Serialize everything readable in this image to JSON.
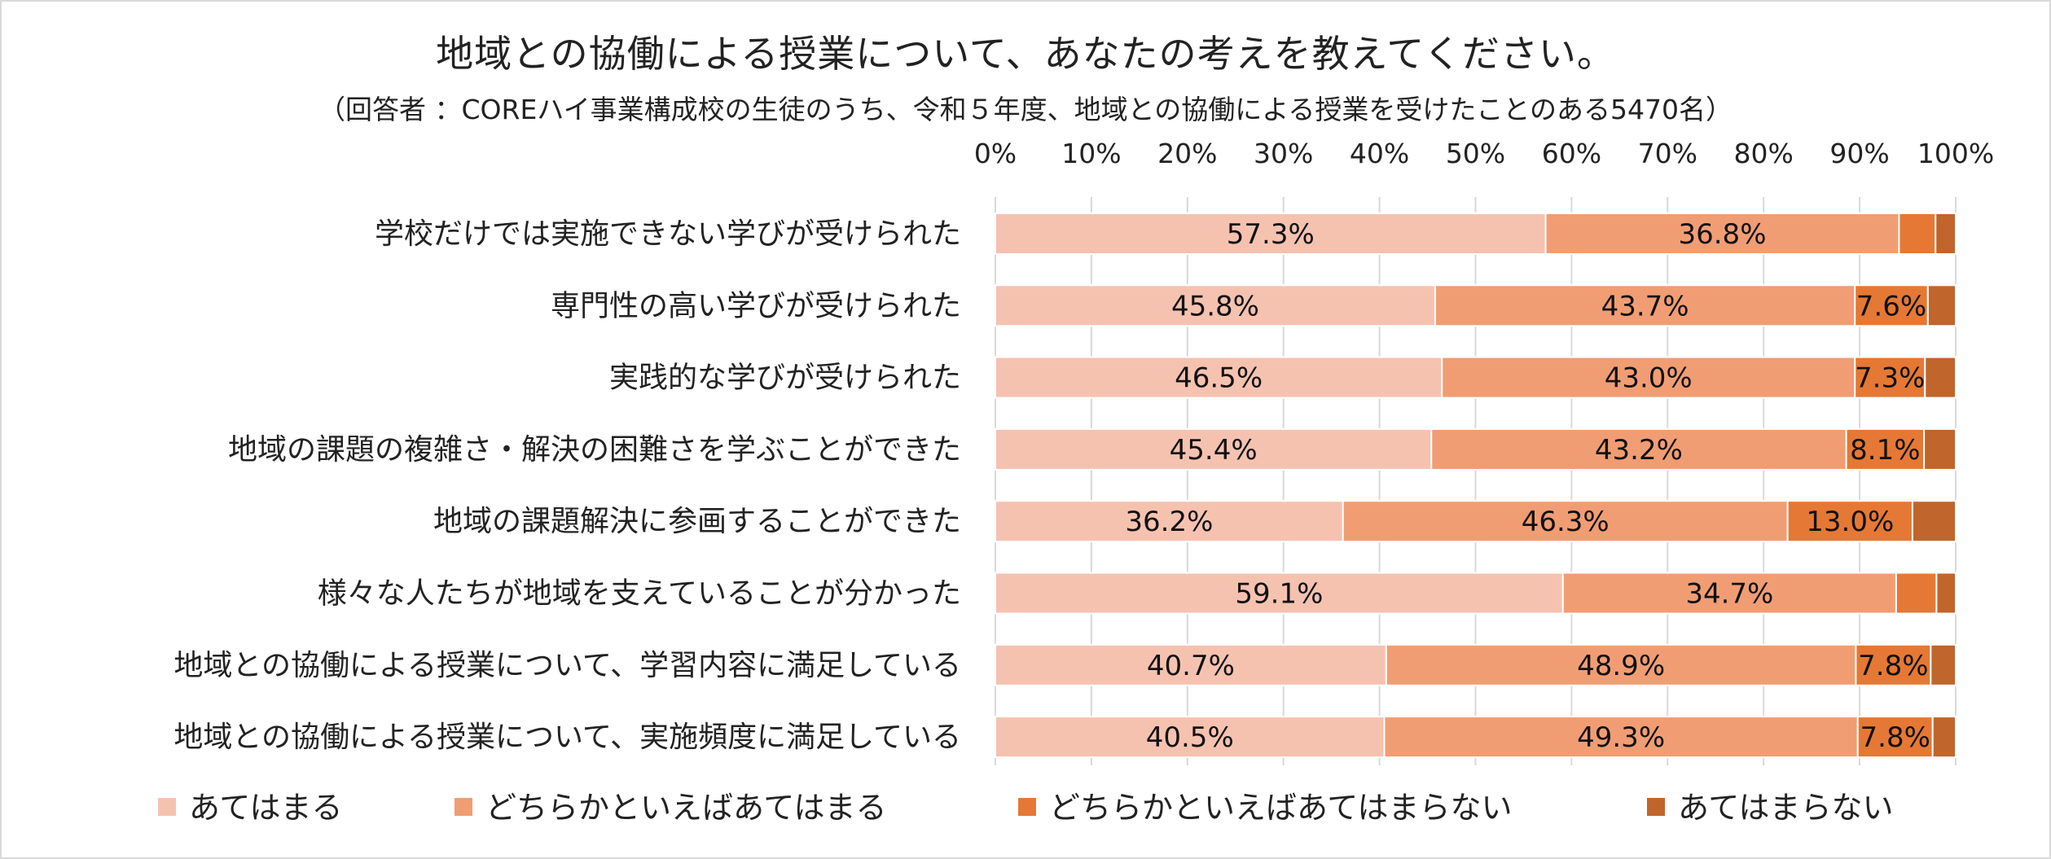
{
  "chart_data": {
    "type": "bar",
    "orientation": "horizontal",
    "stacked": true,
    "percent": true,
    "title": "地域との協働による授業について、あなたの考えを教えてください。",
    "subtitle": "（回答者 ：COREハイ事業構成校の生徒のうち、令和５年度、地域との協働による授業を受けたことのある5470名）",
    "xlim": [
      0,
      100
    ],
    "x_ticks": [
      "0%",
      "10%",
      "20%",
      "30%",
      "40%",
      "50%",
      "60%",
      "70%",
      "80%",
      "90%",
      "100%"
    ],
    "x_axis_position": "top",
    "grid": true,
    "legend_position": "bottom",
    "categories": [
      "学校だけでは実施できない学びが受けられた",
      "専門性の高い学びが受けられた",
      "実践的な学びが受けられた",
      "地域の課題の複雑さ・解決の困難さを学ぶことができた",
      "地域の課題解決に参画することができた",
      "様々な人たちが地域を支えていることが分かった",
      "地域との協働による授業について、学習内容に満足している",
      "地域との協働による授業について、実施頻度に満足している"
    ],
    "series": [
      {
        "name": "あてはまる",
        "color": "#f6c2b0",
        "values": [
          57.3,
          45.8,
          46.5,
          45.4,
          36.2,
          59.1,
          40.7,
          40.5
        ],
        "labels": [
          "57.3%",
          "45.8%",
          "46.5%",
          "45.4%",
          "36.2%",
          "59.1%",
          "40.7%",
          "40.5%"
        ]
      },
      {
        "name": "どちらかといえばあてはまる",
        "color": "#f19d74",
        "values": [
          36.8,
          43.7,
          43.0,
          43.2,
          46.3,
          34.7,
          48.9,
          49.3
        ],
        "labels": [
          "36.8%",
          "43.7%",
          "43.0%",
          "43.2%",
          "46.3%",
          "34.7%",
          "48.9%",
          "49.3%"
        ]
      },
      {
        "name": "どちらかといえばあてはまらない",
        "color": "#e57834",
        "values": [
          3.8,
          7.6,
          7.3,
          8.1,
          13.0,
          4.2,
          7.8,
          7.8
        ],
        "labels": [
          "",
          "7.6%",
          "7.3%",
          "8.1%",
          "13.0%",
          "",
          "7.8%",
          "7.8%"
        ]
      },
      {
        "name": "あてはまらない",
        "color": "#c0652c",
        "values": [
          2.1,
          2.9,
          3.2,
          3.3,
          4.5,
          2.0,
          2.6,
          2.4
        ],
        "labels": [
          "",
          "",
          "",
          "",
          "",
          "",
          "",
          ""
        ]
      }
    ]
  }
}
